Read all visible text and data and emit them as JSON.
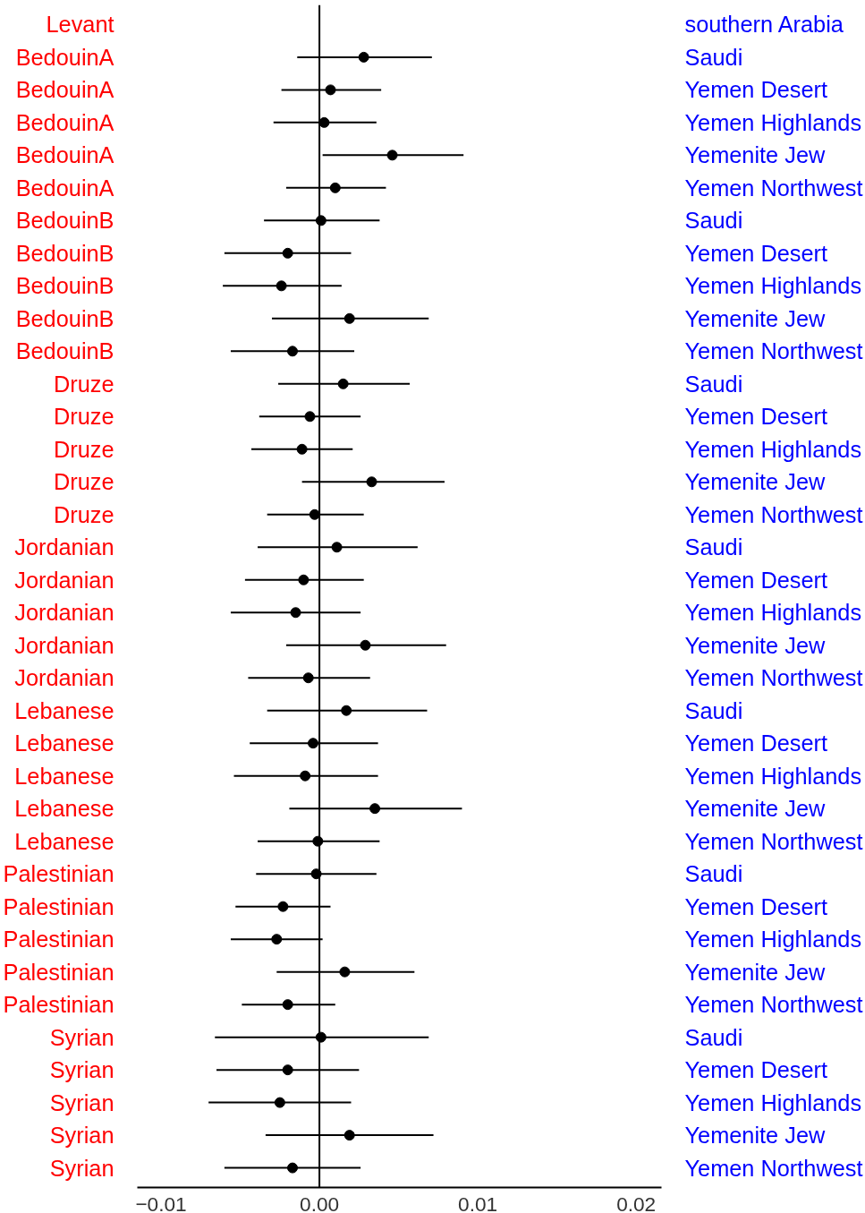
{
  "chart_data": {
    "type": "scatter",
    "orientation": "horizontal",
    "ylabel": "Levant",
    "y2label": "southern Arabia",
    "categories": [
      "BedouinA",
      "BedouinA",
      "BedouinA",
      "BedouinA",
      "BedouinA",
      "BedouinB",
      "BedouinB",
      "BedouinB",
      "BedouinB",
      "BedouinB",
      "Druze",
      "Druze",
      "Druze",
      "Druze",
      "Druze",
      "Jordanian",
      "Jordanian",
      "Jordanian",
      "Jordanian",
      "Jordanian",
      "Lebanese",
      "Lebanese",
      "Lebanese",
      "Lebanese",
      "Lebanese",
      "Palestinian",
      "Palestinian",
      "Palestinian",
      "Palestinian",
      "Palestinian",
      "Syrian",
      "Syrian",
      "Syrian",
      "Syrian",
      "Syrian"
    ],
    "y2_categories": [
      "Saudi",
      "Yemen Desert",
      "Yemen Highlands",
      "Yemenite Jew",
      "Yemen Northwest",
      "Saudi",
      "Yemen Desert",
      "Yemen Highlands",
      "Yemenite Jew",
      "Yemen Northwest",
      "Saudi",
      "Yemen Desert",
      "Yemen Highlands",
      "Yemenite Jew",
      "Yemen Northwest",
      "Saudi",
      "Yemen Desert",
      "Yemen Highlands",
      "Yemenite Jew",
      "Yemen Northwest",
      "Saudi",
      "Yemen Desert",
      "Yemen Highlands",
      "Yemenite Jew",
      "Yemen Northwest",
      "Saudi",
      "Yemen Desert",
      "Yemen Highlands",
      "Yemenite Jew",
      "Yemen Northwest",
      "Saudi",
      "Yemen Desert",
      "Yemen Highlands",
      "Yemenite Jew",
      "Yemen Northwest"
    ],
    "series": [
      {
        "color": "#000000",
        "values": [
          0.0028,
          0.0007,
          0.0003,
          0.0046,
          0.001,
          0.0001,
          -0.002,
          -0.0024,
          0.0019,
          -0.0017,
          0.0015,
          -0.0006,
          -0.0011,
          0.0033,
          -0.0003,
          0.0011,
          -0.001,
          -0.0015,
          0.0029,
          -0.0007,
          0.0017,
          -0.0004,
          -0.0009,
          0.0035,
          -0.0001,
          -0.0002,
          -0.0023,
          -0.0027,
          0.0016,
          -0.002,
          0.0001,
          -0.002,
          -0.0025,
          0.0019,
          -0.0017
        ],
        "errors": [
          [
            -0.0014,
            0.0071
          ],
          [
            -0.0024,
            0.0039
          ],
          [
            -0.0029,
            0.0036
          ],
          [
            0.0002,
            0.0091
          ],
          [
            -0.0021,
            0.0042
          ],
          [
            -0.0035,
            0.0038
          ],
          [
            -0.006,
            0.002
          ],
          [
            -0.0061,
            0.0014
          ],
          [
            -0.003,
            0.0069
          ],
          [
            -0.0056,
            0.0022
          ],
          [
            -0.0026,
            0.0057
          ],
          [
            -0.0038,
            0.0026
          ],
          [
            -0.0043,
            0.0021
          ],
          [
            -0.0011,
            0.0079
          ],
          [
            -0.0033,
            0.0028
          ],
          [
            -0.0039,
            0.0062
          ],
          [
            -0.0047,
            0.0028
          ],
          [
            -0.0056,
            0.0026
          ],
          [
            -0.0021,
            0.008
          ],
          [
            -0.0045,
            0.0032
          ],
          [
            -0.0033,
            0.0068
          ],
          [
            -0.0044,
            0.0037
          ],
          [
            -0.0054,
            0.0037
          ],
          [
            -0.0019,
            0.009
          ],
          [
            -0.0039,
            0.0038
          ],
          [
            -0.004,
            0.0036
          ],
          [
            -0.0053,
            0.0007
          ],
          [
            -0.0056,
            0.0002
          ],
          [
            -0.0027,
            0.006
          ],
          [
            -0.0049,
            0.001
          ],
          [
            -0.0066,
            0.0069
          ],
          [
            -0.0065,
            0.0025
          ],
          [
            -0.007,
            0.002
          ],
          [
            -0.0034,
            0.0072
          ],
          [
            -0.006,
            0.0026
          ]
        ]
      }
    ],
    "xlim": [
      -0.0115,
      0.0216
    ],
    "xticks": [
      {
        "value": -0.01,
        "label": "−0.01"
      },
      {
        "value": 0,
        "label": "0.00"
      },
      {
        "value": 0.01,
        "label": "0.01"
      },
      {
        "value": 0.02,
        "label": "0.02"
      }
    ],
    "ref_lines": [
      {
        "axis": "x",
        "value": 0,
        "color": "#000000"
      }
    ],
    "marker": "circle"
  }
}
